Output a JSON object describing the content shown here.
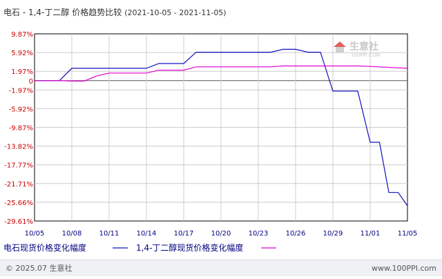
{
  "header": {
    "title": "电石 - 1,4-丁二醇 价格趋势比较",
    "date_range": "(2021-10-05 - 2021-11-05)"
  },
  "watermark": {
    "text": "生意社",
    "sub": "100PPI.COM"
  },
  "footer": {
    "copyright": "© 2025.07 生意社",
    "website": "www.100PPI.com"
  },
  "colors": {
    "series_1": "#1010c0",
    "series_2": "#e000d0",
    "grid": "#cccccc",
    "axis": "#000000",
    "watermark_red": "#e06060"
  },
  "chart_data": {
    "type": "line",
    "title": "电石 - 1,4-丁二醇 价格趋势比较",
    "xlabel": "",
    "ylabel": "",
    "y_unit": "%",
    "ylim": [
      -29.61,
      9.87
    ],
    "y_ticks": [
      "9.87%",
      "5.92%",
      "1.97%",
      "0",
      "-1.97%",
      "-5.92%",
      "-9.87%",
      "-13.82%",
      "-17.77%",
      "-21.71%",
      "-25.66%",
      "-29.61%"
    ],
    "y_tick_values": [
      9.87,
      5.92,
      1.97,
      0,
      -1.97,
      -5.92,
      -9.87,
      -13.82,
      -17.77,
      -21.71,
      -25.66,
      -29.61
    ],
    "x_ticks": [
      "10/05",
      "10/08",
      "10/11",
      "10/14",
      "10/17",
      "10/20",
      "10/23",
      "10/26",
      "10/29",
      "11/01",
      "11/05"
    ],
    "grid": true,
    "legend_position": "bottom",
    "series": [
      {
        "name": "电石现货价格变化幅度",
        "color": "#1010c0",
        "points": [
          [
            "10/05",
            0
          ],
          [
            "10/07",
            0
          ],
          [
            "10/08",
            2.6
          ],
          [
            "10/14",
            2.6
          ],
          [
            "10/15",
            3.6
          ],
          [
            "10/17",
            3.6
          ],
          [
            "10/18",
            6.0
          ],
          [
            "10/24",
            6.0
          ],
          [
            "10/25",
            6.6
          ],
          [
            "10/26",
            6.6
          ],
          [
            "10/27",
            6.0
          ],
          [
            "10/28",
            6.0
          ],
          [
            "10/29",
            -2.2
          ],
          [
            "10/31",
            -2.2
          ],
          [
            "11/01",
            -13.0
          ],
          [
            "11/02",
            -13.0
          ],
          [
            "11/03",
            -23.6
          ],
          [
            "11/04",
            -23.6
          ],
          [
            "11/05",
            -26.4
          ]
        ]
      },
      {
        "name": "1,4-丁二醇现货价格变化幅度",
        "color": "#e000d0",
        "points": [
          [
            "10/05",
            0
          ],
          [
            "10/07",
            0
          ],
          [
            "10/08",
            -0.1
          ],
          [
            "10/09",
            -0.1
          ],
          [
            "10/10",
            1.0
          ],
          [
            "10/11",
            1.6
          ],
          [
            "10/14",
            1.6
          ],
          [
            "10/15",
            2.2
          ],
          [
            "10/17",
            2.2
          ],
          [
            "10/18",
            2.9
          ],
          [
            "10/24",
            2.9
          ],
          [
            "10/25",
            3.1
          ],
          [
            "10/31",
            3.1
          ],
          [
            "11/01",
            3.0
          ],
          [
            "11/05",
            2.6
          ]
        ]
      }
    ]
  }
}
